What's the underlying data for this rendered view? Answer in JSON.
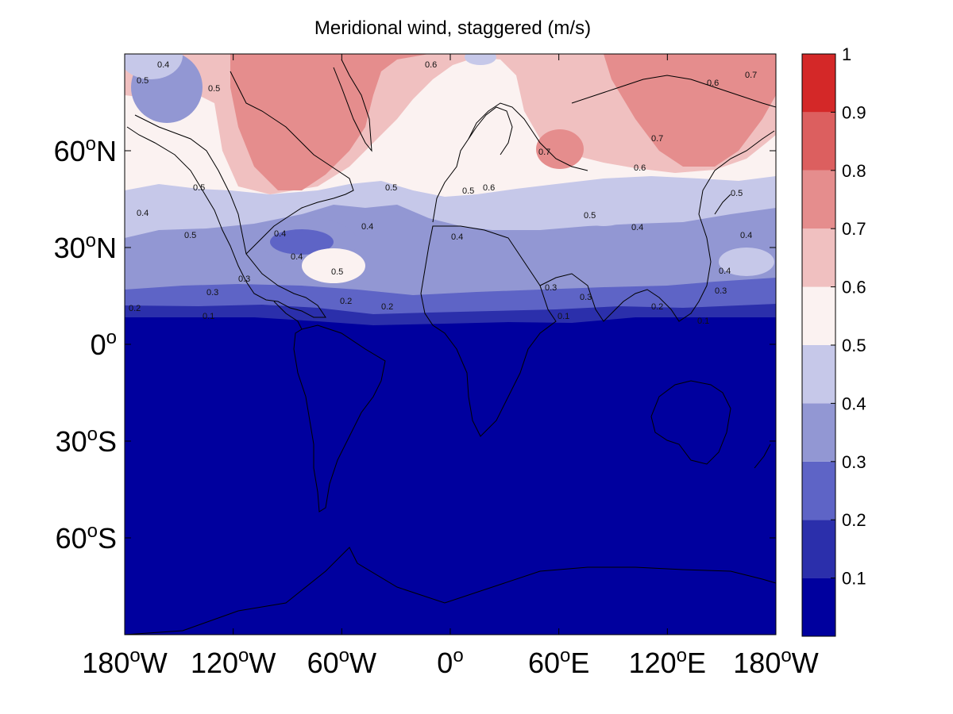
{
  "title": "Meridional wind, staggered (m/s)",
  "lat_ticks": [
    {
      "deg": 60,
      "hemi": "N"
    },
    {
      "deg": 30,
      "hemi": "N"
    },
    {
      "deg": 0,
      "hemi": ""
    },
    {
      "deg": 30,
      "hemi": "S"
    },
    {
      "deg": 60,
      "hemi": "S"
    }
  ],
  "lon_ticks": [
    {
      "deg": 180,
      "hemi": "W"
    },
    {
      "deg": 120,
      "hemi": "W"
    },
    {
      "deg": 60,
      "hemi": "W"
    },
    {
      "deg": 0,
      "hemi": ""
    },
    {
      "deg": 60,
      "hemi": "E"
    },
    {
      "deg": 120,
      "hemi": "E"
    },
    {
      "deg": 180,
      "hemi": "W"
    }
  ],
  "colorbar": {
    "labels": [
      "0.1",
      "0.2",
      "0.3",
      "0.4",
      "0.5",
      "0.6",
      "0.7",
      "0.8",
      "0.9",
      "1"
    ],
    "colors": [
      "#00009e",
      "#2b2fab",
      "#5e64c6",
      "#9297d3",
      "#c6c8e9",
      "#fbf2f1",
      "#f0c0c0",
      "#e58d8d",
      "#dc5f5f",
      "#d42828"
    ]
  },
  "contour_labels": [
    "0.4",
    "0.5",
    "0.6",
    "0.7",
    "0.3",
    "0.2",
    "0.1"
  ],
  "chart_data": {
    "type": "heatmap",
    "title": "Meridional wind, staggered (m/s)",
    "variable": "Meridional wind, staggered",
    "units": "m/s",
    "lon_range": [
      -180,
      180
    ],
    "lat_range": [
      -90,
      90
    ],
    "levels": [
      0.1,
      0.2,
      0.3,
      0.4,
      0.5,
      0.6,
      0.7,
      0.8,
      0.9,
      1
    ],
    "zonal_profile": [
      {
        "lat_range": [
          -90,
          10
        ],
        "band": "<0.1"
      },
      {
        "lat_range": [
          10,
          15
        ],
        "band": "0.1-0.2"
      },
      {
        "lat_range": [
          15,
          20
        ],
        "band": "0.2-0.3"
      },
      {
        "lat_range": [
          20,
          30
        ],
        "band": "0.3-0.4"
      },
      {
        "lat_range": [
          30,
          45
        ],
        "band": "0.4-0.5"
      },
      {
        "lat_range": [
          45,
          60
        ],
        "band": "0.5-0.6"
      },
      {
        "lat_range": [
          60,
          90
        ],
        "band": "0.6-0.8"
      }
    ],
    "features": [
      {
        "lon": -80,
        "lat": 72,
        "value": 0.7
      },
      {
        "lon": 150,
        "lat": 72,
        "value": 0.7
      },
      {
        "lon": 50,
        "lat": 60,
        "value": 0.7
      },
      {
        "lon": -65,
        "lat": 38,
        "value": 0.3
      },
      {
        "lon": -45,
        "lat": 30,
        "value": 0.5
      },
      {
        "lon": 95,
        "lat": 50,
        "value": 0.4
      }
    ]
  }
}
